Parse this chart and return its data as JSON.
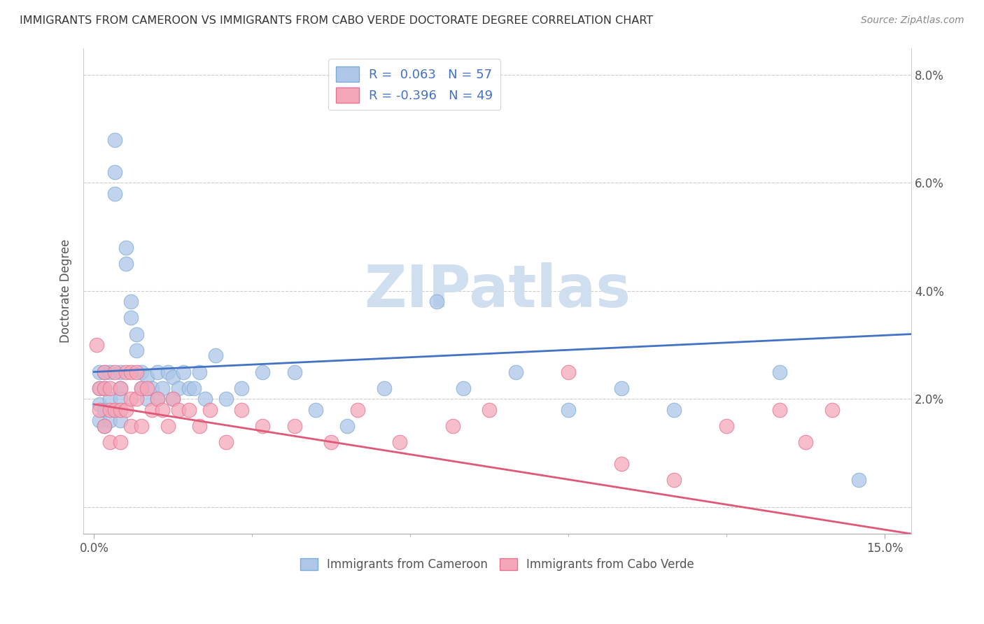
{
  "title": "IMMIGRANTS FROM CAMEROON VS IMMIGRANTS FROM CABO VERDE DOCTORATE DEGREE CORRELATION CHART",
  "source": "Source: ZipAtlas.com",
  "xlabel_cameroon": "Immigrants from Cameroon",
  "xlabel_caboverde": "Immigrants from Cabo Verde",
  "ylabel": "Doctorate Degree",
  "xlim": [
    -0.002,
    0.155
  ],
  "ylim": [
    -0.005,
    0.085
  ],
  "ytick_vals": [
    0.0,
    0.02,
    0.04,
    0.06,
    0.08
  ],
  "ytick_labels": [
    "",
    "2.0%",
    "4.0%",
    "6.0%",
    "8.0%"
  ],
  "cameroon_R": 0.063,
  "cameroon_N": 57,
  "caboverde_R": -0.396,
  "caboverde_N": 49,
  "cameroon_color": "#aec6e8",
  "caboverde_color": "#f4a7b9",
  "cameroon_edge_color": "#7badd4",
  "caboverde_edge_color": "#e87090",
  "cameroon_line_color": "#4472c4",
  "caboverde_line_color": "#e05878",
  "watermark_color": "#d0dff0",
  "cam_line_start": 0.025,
  "cam_line_end": 0.032,
  "cv_line_start": 0.019,
  "cv_line_end": -0.005,
  "cam_scatter_x": [
    0.001,
    0.001,
    0.001,
    0.001,
    0.002,
    0.002,
    0.002,
    0.002,
    0.003,
    0.003,
    0.003,
    0.004,
    0.004,
    0.004,
    0.005,
    0.005,
    0.005,
    0.005,
    0.006,
    0.006,
    0.007,
    0.007,
    0.008,
    0.008,
    0.009,
    0.009,
    0.01,
    0.01,
    0.011,
    0.012,
    0.012,
    0.013,
    0.014,
    0.015,
    0.015,
    0.016,
    0.017,
    0.018,
    0.019,
    0.02,
    0.021,
    0.023,
    0.025,
    0.028,
    0.032,
    0.038,
    0.042,
    0.048,
    0.055,
    0.065,
    0.07,
    0.08,
    0.09,
    0.1,
    0.11,
    0.13,
    0.145
  ],
  "cam_scatter_y": [
    0.025,
    0.022,
    0.019,
    0.016,
    0.025,
    0.022,
    0.018,
    0.015,
    0.025,
    0.02,
    0.016,
    0.068,
    0.062,
    0.058,
    0.025,
    0.022,
    0.02,
    0.016,
    0.048,
    0.045,
    0.038,
    0.035,
    0.032,
    0.029,
    0.025,
    0.022,
    0.024,
    0.02,
    0.022,
    0.025,
    0.02,
    0.022,
    0.025,
    0.024,
    0.02,
    0.022,
    0.025,
    0.022,
    0.022,
    0.025,
    0.02,
    0.028,
    0.02,
    0.022,
    0.025,
    0.025,
    0.018,
    0.015,
    0.022,
    0.038,
    0.022,
    0.025,
    0.018,
    0.022,
    0.018,
    0.025,
    0.005
  ],
  "cv_scatter_x": [
    0.0005,
    0.001,
    0.001,
    0.002,
    0.002,
    0.002,
    0.003,
    0.003,
    0.003,
    0.004,
    0.004,
    0.005,
    0.005,
    0.005,
    0.006,
    0.006,
    0.007,
    0.007,
    0.007,
    0.008,
    0.008,
    0.009,
    0.009,
    0.01,
    0.011,
    0.012,
    0.013,
    0.014,
    0.015,
    0.016,
    0.018,
    0.02,
    0.022,
    0.025,
    0.028,
    0.032,
    0.038,
    0.045,
    0.05,
    0.058,
    0.068,
    0.075,
    0.09,
    0.1,
    0.11,
    0.12,
    0.13,
    0.135,
    0.14
  ],
  "cv_scatter_y": [
    0.03,
    0.022,
    0.018,
    0.025,
    0.022,
    0.015,
    0.022,
    0.018,
    0.012,
    0.025,
    0.018,
    0.022,
    0.018,
    0.012,
    0.025,
    0.018,
    0.025,
    0.02,
    0.015,
    0.025,
    0.02,
    0.022,
    0.015,
    0.022,
    0.018,
    0.02,
    0.018,
    0.015,
    0.02,
    0.018,
    0.018,
    0.015,
    0.018,
    0.012,
    0.018,
    0.015,
    0.015,
    0.012,
    0.018,
    0.012,
    0.015,
    0.018,
    0.025,
    0.008,
    0.005,
    0.015,
    0.018,
    0.012,
    0.018
  ]
}
